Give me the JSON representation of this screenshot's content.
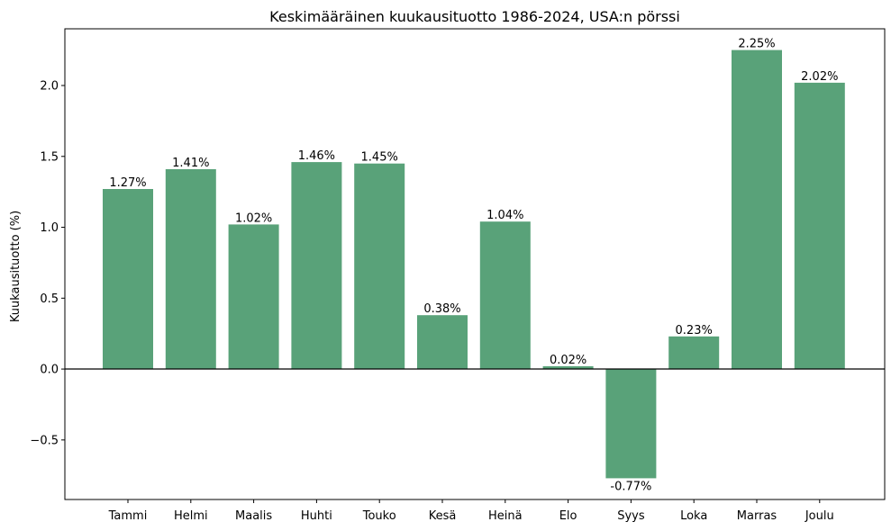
{
  "chart_data": {
    "type": "bar",
    "title": "Keskimääräinen kuukausituotto 1986-2024, USA:n pörssi",
    "xlabel": "",
    "ylabel": "Kuukausituotto (%)",
    "categories": [
      "Tammi",
      "Helmi",
      "Maalis",
      "Huhti",
      "Touko",
      "Kesä",
      "Heinä",
      "Elo",
      "Syys",
      "Loka",
      "Marras",
      "Joulu"
    ],
    "values": [
      1.27,
      1.41,
      1.02,
      1.46,
      1.45,
      0.38,
      1.04,
      0.02,
      -0.77,
      0.23,
      2.25,
      2.02
    ],
    "value_labels": [
      "1.27%",
      "1.41%",
      "1.02%",
      "1.46%",
      "1.45%",
      "0.38%",
      "1.04%",
      "0.02%",
      "-0.77%",
      "0.23%",
      "2.25%",
      "2.02%"
    ],
    "ylim": [
      -0.92,
      2.4
    ],
    "yticks": [
      -0.5,
      0.0,
      0.5,
      1.0,
      1.5,
      2.0
    ],
    "ytick_labels": [
      "−0.5",
      "0.0",
      "0.5",
      "1.0",
      "1.5",
      "2.0"
    ],
    "bar_color": "#59a279",
    "zero_line": true,
    "grid": false,
    "legend": false
  }
}
